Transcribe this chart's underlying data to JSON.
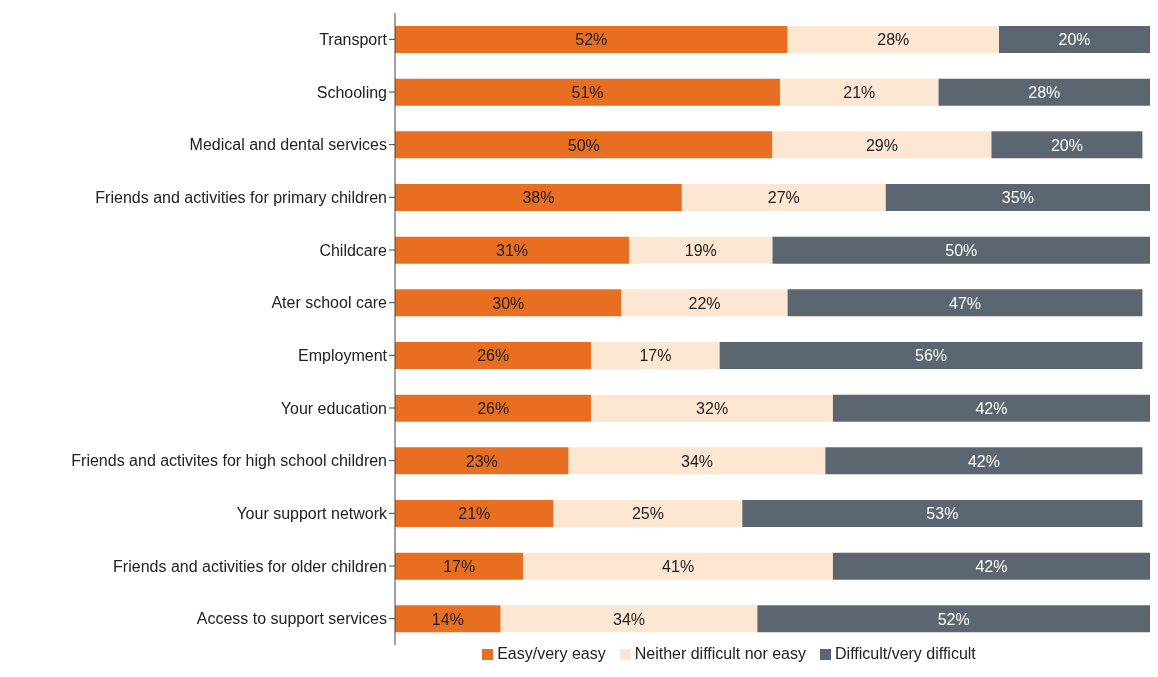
{
  "chart_data": {
    "type": "bar",
    "orientation": "horizontal",
    "stacked": true,
    "legend": "bottom",
    "categories": [
      "Transport",
      "Schooling",
      "Medical and dental services",
      "Friends and activities for primary children",
      "Childcare",
      "Ater school care",
      "Employment",
      "Your education",
      "Friends and activites for high school children",
      "Your support network",
      "Friends and activities for older children",
      "Access to support services"
    ],
    "series": [
      {
        "name": "Easy/very easy",
        "color": "#e86f22",
        "values": [
          52,
          51,
          50,
          38,
          31,
          30,
          26,
          26,
          23,
          21,
          17,
          14
        ],
        "value_labels": [
          "52%",
          "51%",
          "50%",
          "38%",
          "31%",
          "30%",
          "26%",
          "26%",
          "23%",
          "21%",
          "17%",
          "14%"
        ]
      },
      {
        "name": "Neither difficult nor easy",
        "color": "#fde6d2",
        "values": [
          28,
          21,
          29,
          27,
          19,
          22,
          17,
          32,
          34,
          25,
          41,
          34
        ],
        "value_labels": [
          "28%",
          "21%",
          "29%",
          "27%",
          "19%",
          "22%",
          "17%",
          "32%",
          "34%",
          "25%",
          "41%",
          "34%"
        ]
      },
      {
        "name": "Difficult/very difficult",
        "color": "#5b6670",
        "values": [
          20,
          28,
          20,
          35,
          50,
          47,
          56,
          42,
          42,
          53,
          42,
          52
        ],
        "value_labels": [
          "20%",
          "28%",
          "20%",
          "35%",
          "50%",
          "47%",
          "56%",
          "42%",
          "42%",
          "53%",
          "42%",
          "52%"
        ]
      }
    ]
  }
}
